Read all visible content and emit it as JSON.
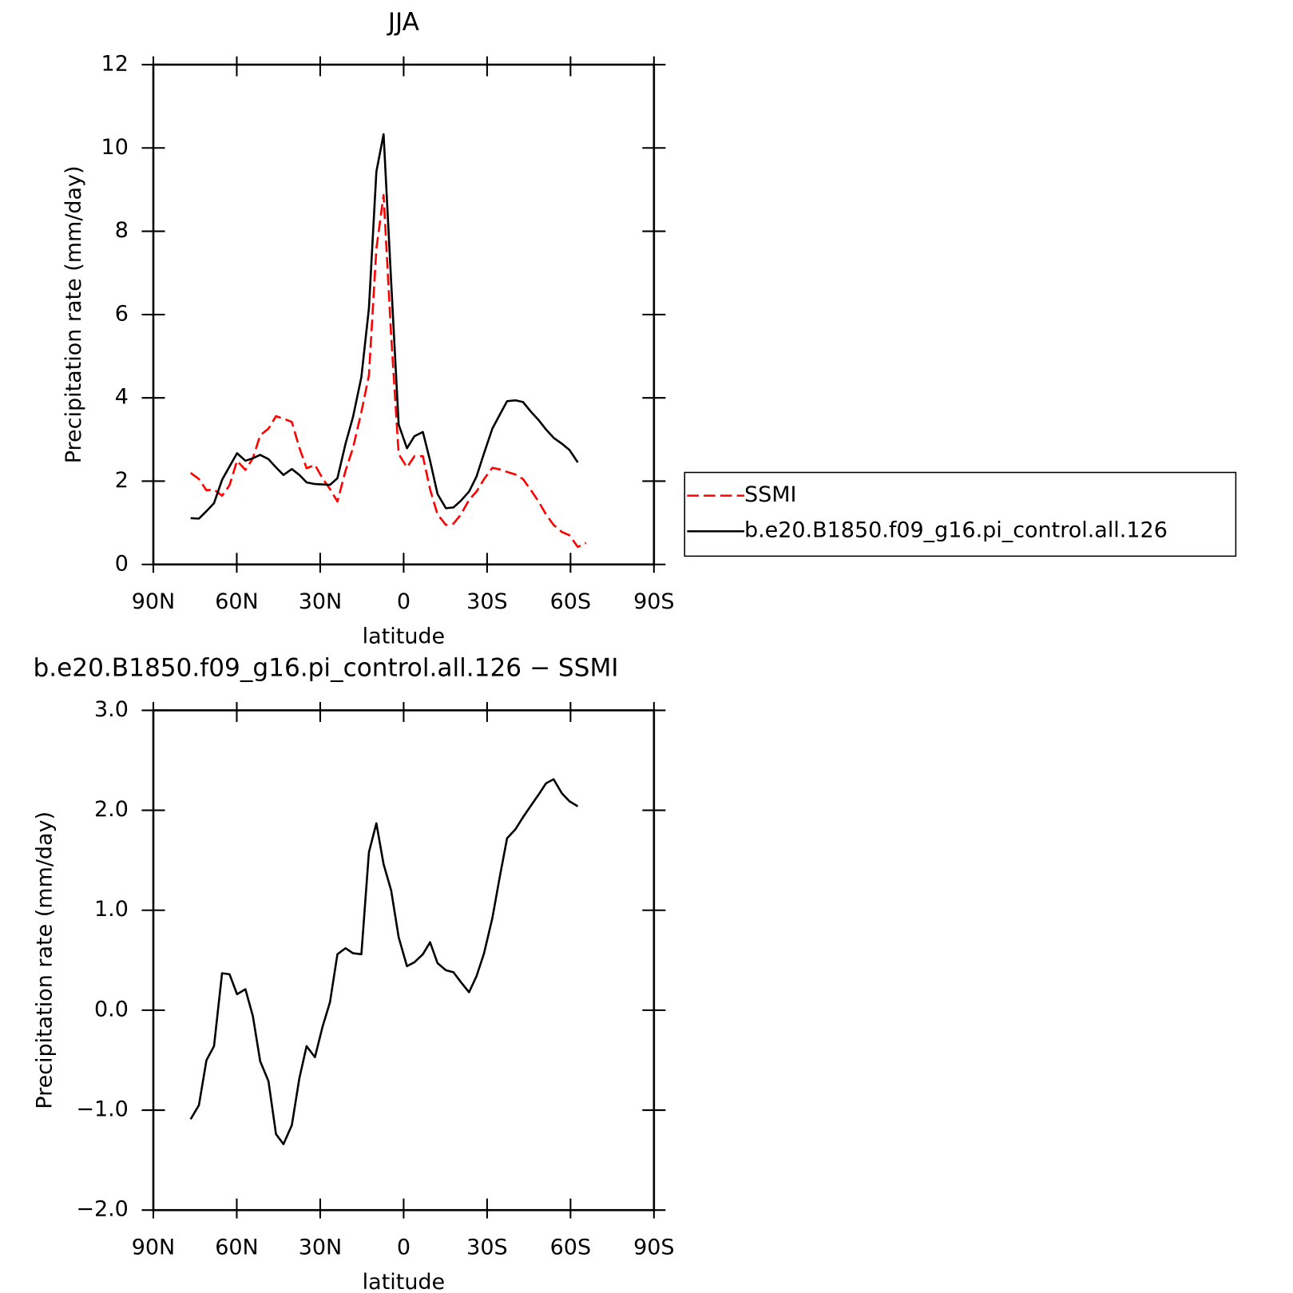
{
  "chart_data": [
    {
      "type": "line",
      "title": "JJA",
      "x_label": "latitude",
      "y_label": "Precipitation rate (mm/day)",
      "x": [
        76.6,
        73.6,
        70.9,
        68.2,
        65.3,
        62.6,
        59.9,
        56.9,
        54.2,
        51.6,
        48.6,
        45.9,
        43.2,
        40.2,
        37.5,
        34.9,
        31.9,
        29.2,
        26.5,
        23.8,
        20.9,
        18.2,
        15.2,
        12.5,
        9.8,
        7.2,
        4.5,
        1.8,
        -1.2,
        -3.9,
        -6.9,
        -9.5,
        -12.2,
        -15.2,
        -17.9,
        -20.6,
        -23.5,
        -26.2,
        -28.9,
        -31.9,
        -34.6,
        -37.2,
        -40.2,
        -42.9,
        -45.6,
        -48.6,
        -51.2,
        -53.9,
        -56.9,
        -59.6,
        -62.6,
        -65.6
      ],
      "series": [
        {
          "name": "SSMI",
          "color": "#ff0000",
          "style": "dashed",
          "values": [
            2.2,
            2.05,
            1.78,
            1.8,
            1.65,
            1.9,
            2.49,
            2.27,
            2.55,
            3.1,
            3.26,
            3.56,
            3.5,
            3.42,
            2.8,
            2.31,
            2.39,
            2.07,
            1.81,
            1.51,
            2.25,
            2.8,
            3.66,
            4.54,
            7.58,
            8.87,
            5.5,
            2.65,
            2.33,
            2.6,
            2.6,
            1.8,
            1.2,
            0.95,
            0.98,
            1.2,
            1.55,
            1.75,
            2.05,
            2.32,
            2.28,
            2.22,
            2.16,
            2.05,
            1.8,
            1.5,
            1.2,
            0.95,
            0.78,
            0.7,
            0.42,
            0.52
          ]
        },
        {
          "name": "b.e20.B1850.f09_g16.pi_control.all.126",
          "color": "#000000",
          "style": "solid",
          "values": [
            1.11,
            1.1,
            1.28,
            1.47,
            2.03,
            2.35,
            2.67,
            2.49,
            2.55,
            2.63,
            2.53,
            2.33,
            2.15,
            2.29,
            2.15,
            1.97,
            1.93,
            1.92,
            1.91,
            2.07,
            2.9,
            3.54,
            4.5,
            6.15,
            9.43,
            10.33,
            6.8,
            3.36,
            2.79,
            3.08,
            3.18,
            2.49,
            1.69,
            1.35,
            1.37,
            1.53,
            1.75,
            2.11,
            2.67,
            3.26,
            3.6,
            3.92,
            3.94,
            3.9,
            3.68,
            3.46,
            3.24,
            3.04,
            2.9,
            2.75,
            2.45,
            null
          ]
        }
      ],
      "xlim": [
        90,
        -90
      ],
      "xticks": [
        {
          "value": 90,
          "label": "90N"
        },
        {
          "value": 60,
          "label": "60N"
        },
        {
          "value": 30,
          "label": "30N"
        },
        0,
        {
          "value": -30,
          "label": "30S"
        },
        {
          "value": -60,
          "label": "60S"
        },
        {
          "value": -90,
          "label": "90S"
        }
      ],
      "ylim": [
        0,
        12
      ],
      "yticks": [
        0,
        2,
        4,
        6,
        8,
        10,
        12
      ],
      "legend": "outside right"
    },
    {
      "type": "line",
      "title": "b.e20.B1850.f09_g16.pi_control.all.126 − SSMI",
      "x_label": "latitude",
      "y_label": "Precipitation rate (mm/day)",
      "x": [
        76.6,
        73.6,
        70.9,
        68.2,
        65.3,
        62.6,
        59.9,
        56.9,
        54.2,
        51.6,
        48.6,
        45.9,
        43.2,
        40.2,
        37.5,
        34.9,
        31.9,
        29.2,
        26.5,
        23.8,
        20.9,
        18.2,
        15.2,
        12.5,
        9.8,
        7.2,
        4.5,
        1.8,
        -1.2,
        -3.9,
        -6.9,
        -9.5,
        -12.2,
        -15.2,
        -17.9,
        -20.6,
        -23.5,
        -26.2,
        -28.9,
        -31.9,
        -34.6,
        -37.2,
        -40.2,
        -42.9,
        -45.6,
        -48.6,
        -51.2,
        -53.9,
        -56.9,
        -59.6,
        -62.6
      ],
      "series": [
        {
          "color": "#000000",
          "style": "solid",
          "values": [
            -1.09,
            -0.95,
            -0.5,
            -0.36,
            0.37,
            0.36,
            0.16,
            0.21,
            -0.06,
            -0.51,
            -0.71,
            -1.24,
            -1.34,
            -1.15,
            -0.68,
            -0.36,
            -0.47,
            -0.17,
            0.08,
            0.56,
            0.62,
            0.57,
            0.56,
            1.58,
            1.87,
            1.46,
            1.2,
            0.73,
            0.44,
            0.48,
            0.56,
            0.68,
            0.47,
            0.4,
            0.38,
            0.28,
            0.18,
            0.34,
            0.57,
            0.92,
            1.34,
            1.72,
            1.81,
            1.93,
            2.04,
            2.16,
            2.27,
            2.31,
            2.17,
            2.09,
            2.04
          ]
        }
      ],
      "xlim": [
        90,
        -90
      ],
      "xticks": [
        {
          "value": 90,
          "label": "90N"
        },
        {
          "value": 60,
          "label": "60N"
        },
        {
          "value": 30,
          "label": "30N"
        },
        0,
        {
          "value": -30,
          "label": "30S"
        },
        {
          "value": -60,
          "label": "60S"
        },
        {
          "value": -90,
          "label": "90S"
        }
      ],
      "ylim": [
        -2,
        3
      ],
      "yticks": [
        {
          "value": -2,
          "label": "−2.0"
        },
        {
          "value": -1,
          "label": "−1.0"
        },
        {
          "value": 0,
          "label": "0.0"
        },
        {
          "value": 1,
          "label": "1.0"
        },
        {
          "value": 2,
          "label": "2.0"
        },
        {
          "value": 3,
          "label": "3.0"
        }
      ]
    }
  ]
}
